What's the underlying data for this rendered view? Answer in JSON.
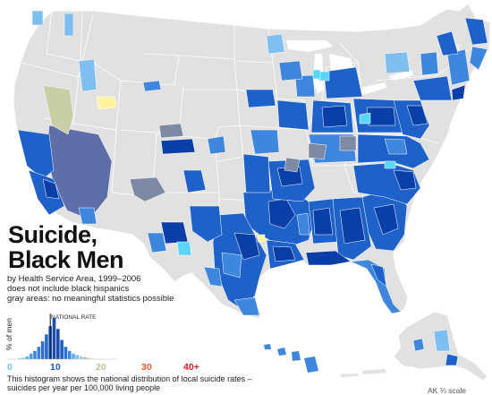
{
  "colors": {
    "land_gray": "#e1e1e1",
    "border": "#ffffff",
    "very_dark_blue": "#0b3fa8",
    "dark_blue": "#1e62c9",
    "mid_blue": "#3f86de",
    "light_blue": "#7fbff0",
    "cyan": "#5ad4f7",
    "slate": "#5e6ea8",
    "slate_gray": "#7e8aa4",
    "sage": "#c8cfa6",
    "yellow": "#fff3a0"
  },
  "title": {
    "line1": "Suicide,",
    "line2": "Black Men"
  },
  "subtitle": {
    "line1": "by Health Service Area, 1999–2006",
    "line2": "does not include black hispanics",
    "line3": "gray areas: no meaningful statistics possible"
  },
  "legend": {
    "y_axis_label": "% of men",
    "national_rate_label": "NATIONAL RATE",
    "ticks": [
      {
        "label": "0",
        "color": "#6cc3ec"
      },
      {
        "label": "10",
        "color": "#1f57b8"
      },
      {
        "label": "20",
        "color": "#b6c39a"
      },
      {
        "label": "30",
        "color": "#e0592c"
      },
      {
        "label": "40+",
        "color": "#d81b1b"
      }
    ],
    "note_line1": "This histogram shows the national distribution of local suicide rates –",
    "note_line2": "suicides per year per 100,000 living people"
  },
  "chart_data": {
    "type": "bar",
    "title": "",
    "xlabel": "",
    "ylabel": "% of men",
    "x_ticks": [
      "0",
      "10",
      "20",
      "30",
      "40+"
    ],
    "national_rate": 9,
    "bin_rates": [
      1,
      2,
      3,
      4,
      5,
      6,
      7,
      8,
      9,
      10,
      11,
      12,
      13,
      14,
      15,
      16,
      17,
      18,
      19,
      20
    ],
    "values": [
      0.5,
      1,
      2,
      4,
      6,
      9,
      13,
      18,
      24,
      30,
      22,
      14,
      9,
      6,
      4,
      3,
      2,
      1.5,
      1,
      0.5
    ],
    "bar_colors": [
      "#6cc3ec",
      "#6cc3ec",
      "#5aaee6",
      "#4a9be0",
      "#3f86de",
      "#3a7fd8",
      "#2f6fcd",
      "#2a67c8",
      "#1f57b8",
      "#1b4ea8",
      "#1b4ea8",
      "#1e5fc4",
      "#2f6fcd",
      "#3f86de",
      "#5aaee6",
      "#7fbff0",
      "#9dcbe6",
      "#b6c39a",
      "#c8cfa6",
      "#d6dcb8"
    ]
  },
  "alaska_label": "AK ⅓ scale"
}
